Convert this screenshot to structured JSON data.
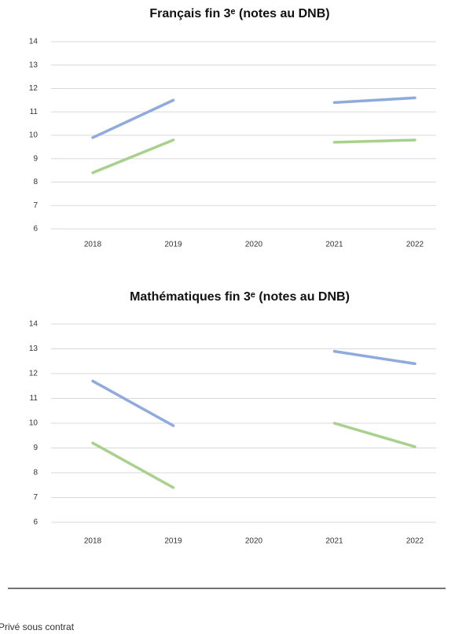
{
  "chart_data": [
    {
      "type": "line",
      "title": "Français fin 3ᵉ (notes au DNB)",
      "categories": [
        "2018",
        "2019",
        "2020",
        "2021",
        "2022"
      ],
      "series": [
        {
          "color": "#8faadc",
          "values": [
            9.9,
            11.5,
            null,
            11.4,
            11.6
          ]
        },
        {
          "color": "#a9d18e",
          "values": [
            8.4,
            9.8,
            null,
            9.7,
            9.8
          ]
        }
      ],
      "ylim": [
        6,
        14
      ],
      "yticks": [
        6,
        7,
        8,
        9,
        10,
        11,
        12,
        13,
        14
      ],
      "grid": true
    },
    {
      "type": "line",
      "title": "Mathématiques fin 3ᵉ (notes au DNB)",
      "categories": [
        "2018",
        "2019",
        "2020",
        "2021",
        "2022"
      ],
      "series": [
        {
          "color": "#8faadc",
          "values": [
            11.7,
            9.9,
            null,
            12.9,
            12.4
          ]
        },
        {
          "color": "#a9d18e",
          "values": [
            9.2,
            7.4,
            null,
            10.0,
            9.05
          ]
        }
      ],
      "ylim": [
        6,
        14
      ],
      "yticks": [
        6,
        7,
        8,
        9,
        10,
        11,
        12,
        13,
        14
      ],
      "grid": true
    }
  ],
  "footer": "Privé sous contrat"
}
